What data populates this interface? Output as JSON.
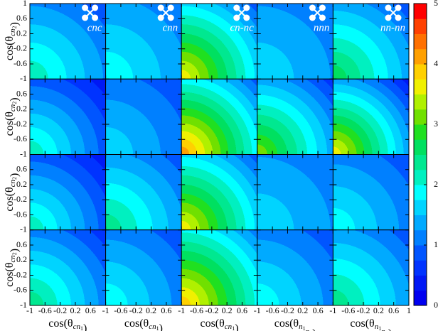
{
  "chart_data": {
    "type": "contour_grid",
    "xlim": [
      -1,
      1
    ],
    "ylim": [
      -1,
      1
    ],
    "xticks": [
      -1,
      -0.6,
      -0.2,
      0.2,
      0.6,
      1
    ],
    "yticks": [
      -1,
      -0.6,
      -0.2,
      0.2,
      0.6,
      1
    ],
    "panel_titles": [
      "cnc",
      "cnn",
      "cn-nc",
      "nnn",
      "nn-nn"
    ],
    "row_labels": [
      {
        "pre": "cos(θ",
        "sub": [
          [
            "cn",
            "2"
          ]
        ],
        "post": ")"
      },
      {
        "pre": "cos(θ",
        "sub": [
          [
            "cn",
            "2"
          ]
        ],
        "post": ")"
      },
      {
        "pre": "cos(θ",
        "sub": [
          [
            "cn",
            "2"
          ]
        ],
        "post": ")"
      },
      {
        "pre": "cos(θ",
        "sub": [
          [
            "cn",
            "2"
          ]
        ],
        "post": ")"
      }
    ],
    "col_labels": [
      {
        "pre": "cos(θ",
        "sub": [
          [
            "cn",
            "1"
          ]
        ],
        "post": ")"
      },
      {
        "pre": "cos(θ",
        "sub": [
          [
            "cn",
            "1"
          ]
        ],
        "post": ")"
      },
      {
        "pre": "cos(θ",
        "sub": [
          [
            "cn",
            "1"
          ]
        ],
        "post": ")"
      },
      {
        "pre": "cos(θ",
        "sub": [
          [
            "n",
            "1"
          ],
          [
            "n",
            "2"
          ]
        ],
        "post": ")"
      },
      {
        "pre": "cos(θ",
        "sub": [
          [
            "n",
            "1"
          ],
          [
            "n",
            "2"
          ]
        ],
        "post": ")"
      }
    ],
    "colorbar": {
      "lim": [
        0,
        5
      ],
      "ticks": [
        0,
        1,
        2,
        3,
        4,
        5
      ],
      "colors": [
        "#0000f0",
        "#0018f5",
        "#0033ff",
        "#0055ff",
        "#0080ff",
        "#00aaff",
        "#00d4ff",
        "#00ffff",
        "#00f0c0",
        "#00e890",
        "#00e060",
        "#20e020",
        "#70e000",
        "#b0f000",
        "#f0f000",
        "#ffd000",
        "#ffa000",
        "#ff7000",
        "#ff4000",
        "#ff0000"
      ]
    }
  }
}
